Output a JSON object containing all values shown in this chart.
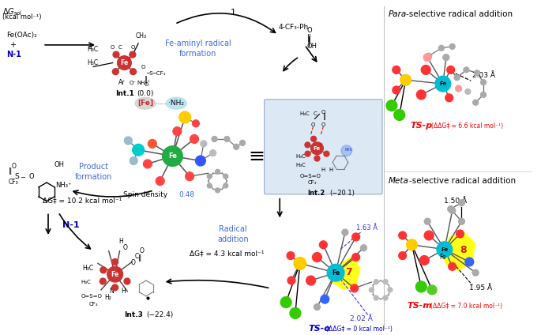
{
  "bg_color": "#ffffff",
  "fig_width": 6.85,
  "fig_height": 4.24,
  "dpi": 100,
  "fe_aminyl_label": "Fe-aminyl radical\nformation",
  "fe_aminyl_color": "#4169e1",
  "product_formation_label": "Product\nformation",
  "product_formation_color": "#4169e1",
  "radical_addition_label": "Radical\naddition",
  "radical_addition_color": "#4169e1",
  "dg_product": "ΔG‡ = 10.2 kcal mol⁻¹",
  "dg_radical": "ΔG‡ = 4.3 kcal mol⁻¹",
  "spin_density_value": "0.48",
  "spin_density_value_color": "#4169e1",
  "fe_oac2_label": "Fe(OAc)₂",
  "n1_label": "N-1",
  "n1_color": "#0000cd",
  "ts_p_energy": "ΔΔG‡ = 6.6 kcal mol⁻¹",
  "ts_p_color": "#ff0000",
  "ts_p_dist": "2.03 Å",
  "ts_o_energy": "ΔΔG‡ = 0 kcal mol⁻¹",
  "ts_o_color": "#0000cd",
  "ts_o_dist1": "1.63 Å",
  "ts_o_dist2": "2.02 Å",
  "ts_m_energy": "ΔΔG‡ = 7.0 kcal mol⁻¹",
  "ts_m_color": "#ff0000",
  "ts_m_dist1": "1.50 Å",
  "ts_m_dist2": "1.95 Å",
  "int_box_color": "#dce9f5",
  "ts7_color": "#ffff00",
  "ts8_color": "#ffff00",
  "fe_color": "#00bcd4",
  "red_atom": "#ff3333",
  "green_atom": "#00cc44",
  "yellow_atom": "#ffcc00",
  "blue_atom": "#3366ff",
  "gray_atom": "#aaaaaa",
  "chlorine_color": "#33cc00",
  "pink_atom": "#ff9999"
}
